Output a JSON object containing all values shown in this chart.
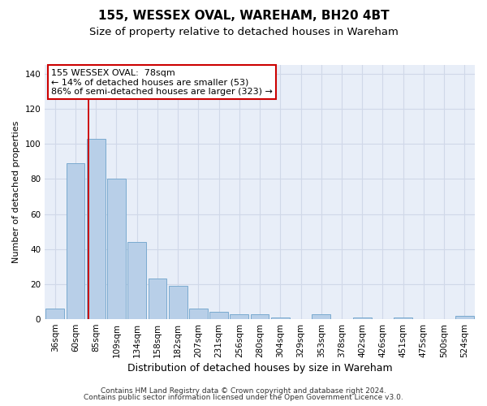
{
  "title1": "155, WESSEX OVAL, WAREHAM, BH20 4BT",
  "title2": "Size of property relative to detached houses in Wareham",
  "xlabel": "Distribution of detached houses by size in Wareham",
  "ylabel": "Number of detached properties",
  "categories": [
    "36sqm",
    "60sqm",
    "85sqm",
    "109sqm",
    "134sqm",
    "158sqm",
    "182sqm",
    "207sqm",
    "231sqm",
    "256sqm",
    "280sqm",
    "304sqm",
    "329sqm",
    "353sqm",
    "378sqm",
    "402sqm",
    "426sqm",
    "451sqm",
    "475sqm",
    "500sqm",
    "524sqm"
  ],
  "values": [
    6,
    89,
    103,
    80,
    44,
    23,
    19,
    6,
    4,
    3,
    3,
    1,
    0,
    3,
    0,
    1,
    0,
    1,
    0,
    0,
    2
  ],
  "bar_color": "#b8cfe8",
  "bar_edge_color": "#7aaad0",
  "grid_color": "#d0d8e8",
  "bg_color": "#e8eef8",
  "annotation_line1": "155 WESSEX OVAL:  78sqm",
  "annotation_line2": "← 14% of detached houses are smaller (53)",
  "annotation_line3": "86% of semi-detached houses are larger (323) →",
  "annotation_box_color": "#ffffff",
  "annotation_box_edge_color": "#cc0000",
  "vline_color": "#cc0000",
  "vline_x": 1.62,
  "ylim": [
    0,
    145
  ],
  "yticks": [
    0,
    20,
    40,
    60,
    80,
    100,
    120,
    140
  ],
  "footer1": "Contains HM Land Registry data © Crown copyright and database right 2024.",
  "footer2": "Contains public sector information licensed under the Open Government Licence v3.0.",
  "title1_fontsize": 11,
  "title2_fontsize": 9.5,
  "xlabel_fontsize": 9,
  "ylabel_fontsize": 8,
  "tick_fontsize": 7.5,
  "annot_fontsize": 8,
  "footer_fontsize": 6.5
}
